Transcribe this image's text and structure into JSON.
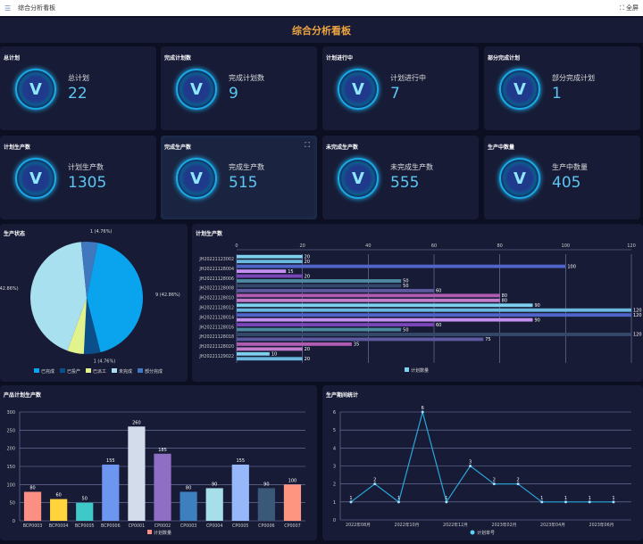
{
  "topbar": {
    "title": "综合分析看板",
    "fullscreen": "全屏"
  },
  "dashboard_title": "综合分析看板",
  "cards": [
    {
      "title": "总计划",
      "label": "总计划",
      "value": "22"
    },
    {
      "title": "完成计划数",
      "label": "完成计划数",
      "value": "9"
    },
    {
      "title": "计划进行中",
      "label": "计划进行中",
      "value": "7"
    },
    {
      "title": "部分完成计划",
      "label": "部分完成计划",
      "value": "1"
    },
    {
      "title": "计划生产数",
      "label": "计划生产数",
      "value": "1305"
    },
    {
      "title": "完成生产数",
      "label": "完成生产数",
      "value": "515"
    },
    {
      "title": "未完成生产数",
      "label": "未完成生产数",
      "value": "555"
    },
    {
      "title": "生产中数量",
      "label": "生产中数量",
      "value": "405"
    }
  ],
  "badge_glyph": "V",
  "chart_data": [
    {
      "type": "pie",
      "title": "生产状态",
      "legend_position": "bottom",
      "slices": [
        {
          "name": "已完成",
          "value": 9,
          "label": "9 (42.86%)",
          "color": "#0aa4ee"
        },
        {
          "name": "已投产",
          "value": 1,
          "label": "1 (4.76%)",
          "color": "#0b4f8a"
        },
        {
          "name": "已派工",
          "value": 1,
          "label": "",
          "color": "#e2f28c"
        },
        {
          "name": "未完成",
          "value": 9,
          "label": "9 (42.86%)",
          "color": "#a9e0ef"
        },
        {
          "name": "部分完成",
          "value": 1,
          "label": "1 (4.76%)",
          "color": "#3f78bf"
        }
      ]
    },
    {
      "type": "bar",
      "orientation": "horizontal",
      "title": "计划生产数",
      "xlim": [
        0,
        120
      ],
      "xticks": [
        0,
        20,
        40,
        60,
        80,
        100,
        120
      ],
      "grid": true,
      "legend_position": "bottom-center",
      "category_labels": [
        "JH20221123002",
        "JH20221128004",
        "JH20221128006",
        "JH20221128008",
        "JH20221128010",
        "JH20221128012",
        "JH20221128014",
        "JH20221128016",
        "JH20221128018",
        "JH20221128020",
        "JH20221129022"
      ],
      "series": [
        {
          "name": "计划数量",
          "values": [
            20,
            20,
            100,
            15,
            20,
            50,
            50,
            60,
            80,
            80,
            90,
            120,
            120,
            90,
            60,
            50,
            120,
            75,
            35,
            20,
            10,
            20
          ]
        }
      ],
      "colors": [
        "#7fd0ee",
        "#6ab8de",
        "#4f66c8",
        "#c48ff0",
        "#7a45b8",
        "#4d8aa0",
        "#34496a",
        "#5b5a9e",
        "#b05cb0",
        "#c27bc8"
      ]
    },
    {
      "type": "bar",
      "title": "产品计划生产数",
      "ylim": [
        0,
        300
      ],
      "yticks": [
        0,
        50,
        100,
        150,
        200,
        250,
        300
      ],
      "grid": true,
      "legend_position": "bottom-center",
      "categories": [
        "BCP0003",
        "BCP0004",
        "BCP0005",
        "BCP0006",
        "CP0001",
        "CP0002",
        "CP0003",
        "CP0004",
        "CP0005",
        "CP0006",
        "CP0007"
      ],
      "series": [
        {
          "name": "计划数量",
          "values": [
            80,
            60,
            50,
            155,
            260,
            185,
            80,
            90,
            155,
            90,
            100
          ]
        }
      ],
      "colors": [
        "#fb8f84",
        "#fed33c",
        "#3fc8c8",
        "#6c96f0",
        "#d2dcea",
        "#8f6fc4",
        "#3e7fc0",
        "#a6dfea",
        "#96b8fa",
        "#3a5978",
        "#fe9580"
      ]
    },
    {
      "type": "line",
      "title": "生产期间统计",
      "ylim": [
        0,
        6
      ],
      "yticks": [
        0,
        1,
        2,
        3,
        4,
        5,
        6
      ],
      "grid": true,
      "legend_position": "bottom-center",
      "x_tick_labels": [
        "2022年08月",
        "2022年10月",
        "2022年12月",
        "2023年02月",
        "2023年04月",
        "2023年06月"
      ],
      "series": [
        {
          "name": "计划单号",
          "values": [
            1,
            2,
            1,
            6,
            1,
            3,
            2,
            2,
            1,
            1,
            1,
            1
          ],
          "color": "#2aa6dc"
        }
      ]
    }
  ]
}
